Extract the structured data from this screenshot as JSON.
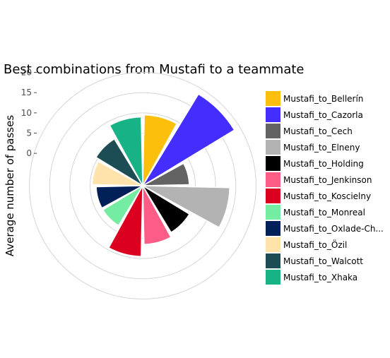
{
  "chart_data": {
    "type": "bar",
    "coord": "polar",
    "title": "Best combinations from Mustafi to a teammate",
    "xlabel": "",
    "ylabel": "Average number of passes",
    "y_ticks": [
      0,
      5,
      10,
      15,
      20
    ],
    "y_offset": 8,
    "legend_position": "right",
    "grid": true,
    "categories": [
      "Mustafi_to_Bellerín",
      "Mustafi_to_Cazorla",
      "Mustafi_to_Cech",
      "Mustafi_to_Elneny",
      "Mustafi_to_Holding",
      "Mustafi_to_Jenkinson",
      "Mustafi_to_Koscielny",
      "Mustafi_to_Monreal",
      "Mustafi_to_Oxlade-Ch...",
      "Mustafi_to_Özil",
      "Mustafi_to_Walcott",
      "Mustafi_to_Xhaka"
    ],
    "values": [
      9.5,
      18.5,
      3.5,
      13.5,
      5.5,
      6.5,
      9.5,
      3.5,
      3.5,
      4.5,
      5.5,
      9.0
    ],
    "colors": [
      "#fcc00c",
      "#432dff",
      "#636363",
      "#b3b3b3",
      "#000000",
      "#fd5c86",
      "#dc0020",
      "#74eca1",
      "#002057",
      "#ffe3ab",
      "#1d4d54",
      "#18b287"
    ]
  }
}
